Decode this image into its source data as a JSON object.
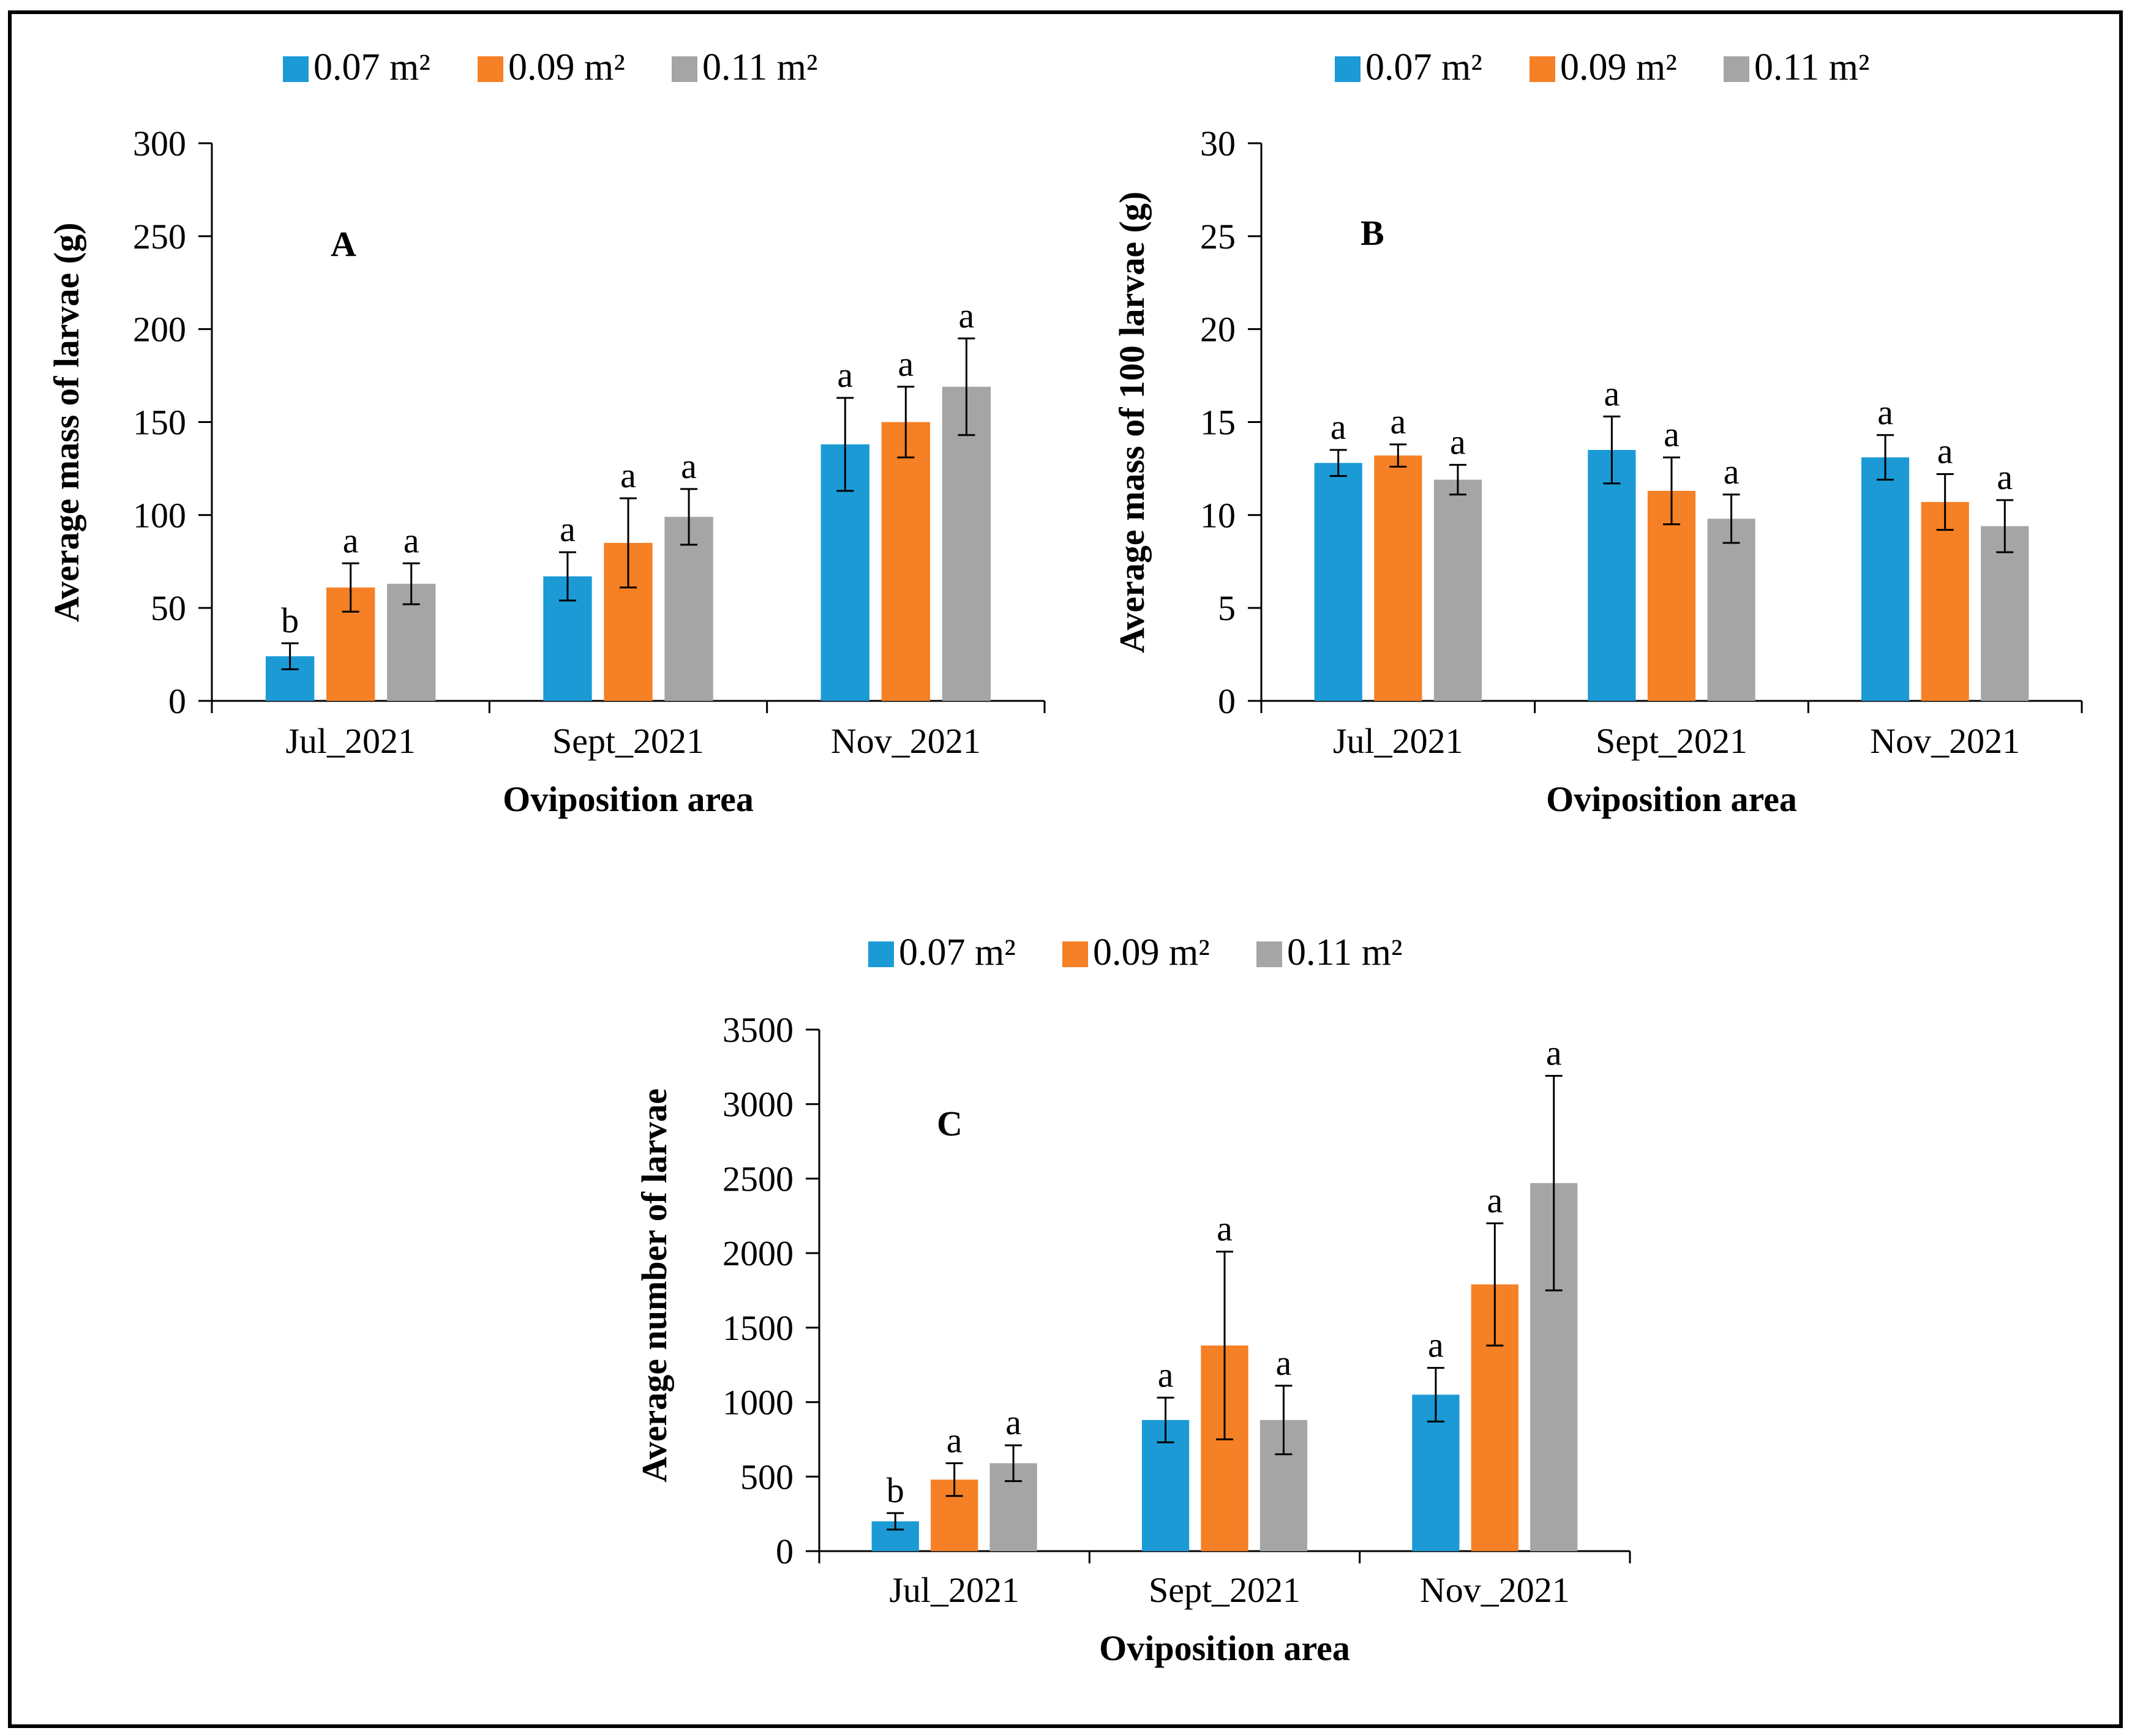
{
  "colors": {
    "s0": "#1b9ad6",
    "s1": "#f58025",
    "s2": "#a5a5a5",
    "axis": "#000000",
    "frame": "#000000"
  },
  "chart_data": [
    {
      "id": "A",
      "type": "bar",
      "panel_label": "A",
      "title": "",
      "xlabel": "Oviposition  area",
      "ylabel": "Average mass of larvae (g)",
      "ylim": [
        0,
        300
      ],
      "yticks": [
        0,
        50,
        100,
        150,
        200,
        250,
        300
      ],
      "categories": [
        "Jul_2021",
        "Sept_2021",
        "Nov_2021"
      ],
      "legend": "top",
      "series": [
        {
          "name": "0.07 m²",
          "values": [
            24,
            67,
            138
          ],
          "err": [
            7,
            13,
            25
          ],
          "letters": [
            "b",
            "a",
            "a"
          ]
        },
        {
          "name": "0.09 m²",
          "values": [
            61,
            85,
            150
          ],
          "err": [
            13,
            24,
            19
          ],
          "letters": [
            "a",
            "a",
            "a"
          ]
        },
        {
          "name": "0.11 m²",
          "values": [
            63,
            99,
            169
          ],
          "err": [
            11,
            15,
            26
          ],
          "letters": [
            "a",
            "a",
            "a"
          ]
        }
      ]
    },
    {
      "id": "B",
      "type": "bar",
      "panel_label": "B",
      "title": "",
      "xlabel": "Oviposition  area",
      "ylabel": "Average mass of 100 larvae (g)",
      "ylim": [
        0,
        30
      ],
      "yticks": [
        0,
        5,
        10,
        15,
        20,
        25,
        30
      ],
      "categories": [
        "Jul_2021",
        "Sept_2021",
        "Nov_2021"
      ],
      "legend": "top",
      "series": [
        {
          "name": "0.07 m²",
          "values": [
            12.8,
            13.5,
            13.1
          ],
          "err": [
            0.7,
            1.8,
            1.2
          ],
          "letters": [
            "a",
            "a",
            "a"
          ]
        },
        {
          "name": "0.09 m²",
          "values": [
            13.2,
            11.3,
            10.7
          ],
          "err": [
            0.6,
            1.8,
            1.5
          ],
          "letters": [
            "a",
            "a",
            "a"
          ]
        },
        {
          "name": "0.11 m²",
          "values": [
            11.9,
            9.8,
            9.4
          ],
          "err": [
            0.8,
            1.3,
            1.4
          ],
          "letters": [
            "a",
            "a",
            "a"
          ]
        }
      ]
    },
    {
      "id": "C",
      "type": "bar",
      "panel_label": "C",
      "title": "",
      "xlabel": "Oviposition  area",
      "ylabel": "Average number  of larvae",
      "ylim": [
        0,
        3500
      ],
      "yticks": [
        0,
        500,
        1000,
        1500,
        2000,
        2500,
        3000,
        3500
      ],
      "categories": [
        "Jul_2021",
        "Sept_2021",
        "Nov_2021"
      ],
      "legend": "top",
      "series": [
        {
          "name": "0.07 m²",
          "values": [
            200,
            880,
            1050
          ],
          "err": [
            55,
            150,
            180
          ],
          "letters": [
            "b",
            "a",
            "a"
          ]
        },
        {
          "name": "0.09 m²",
          "values": [
            480,
            1380,
            1790
          ],
          "err": [
            110,
            630,
            410
          ],
          "letters": [
            "a",
            "a",
            "a"
          ]
        },
        {
          "name": "0.11 m²",
          "values": [
            590,
            880,
            2470
          ],
          "err": [
            120,
            230,
            720
          ],
          "letters": [
            "a",
            "a",
            "a"
          ]
        }
      ]
    }
  ]
}
